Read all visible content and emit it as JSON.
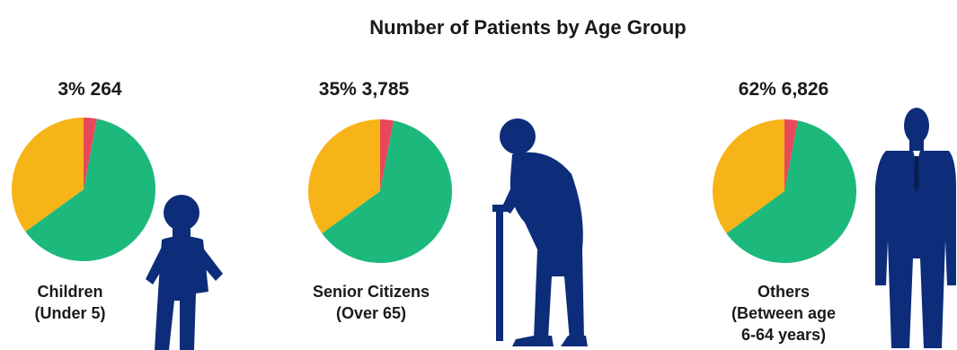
{
  "chart_data": {
    "type": "pie",
    "title": "Number of Patients by Age Group",
    "colors": {
      "red": "#E8485A",
      "orange": "#F7B418",
      "green": "#1DB97C",
      "silhouette": "#0D2D7A"
    },
    "groups": [
      {
        "name_line1": "Children",
        "name_line2": "(Under 5)",
        "name_line3": "",
        "stat": "3% 264",
        "percent": 3,
        "count": 264,
        "slices": [
          {
            "label": "red",
            "value": 3
          },
          {
            "label": "green",
            "value": 62
          },
          {
            "label": "orange",
            "value": 35
          }
        ]
      },
      {
        "name_line1": "Senior Citizens",
        "name_line2": "(Over 65)",
        "name_line3": "",
        "stat": "35% 3,785",
        "percent": 35,
        "count": 3785,
        "slices": [
          {
            "label": "red",
            "value": 3
          },
          {
            "label": "green",
            "value": 62
          },
          {
            "label": "orange",
            "value": 35
          }
        ]
      },
      {
        "name_line1": "Others",
        "name_line2": "(Between age",
        "name_line3": "6-64 years)",
        "stat": "62% 6,826",
        "percent": 62,
        "count": 6826,
        "slices": [
          {
            "label": "red",
            "value": 3
          },
          {
            "label": "green",
            "value": 62
          },
          {
            "label": "orange",
            "value": 35
          }
        ]
      }
    ]
  }
}
